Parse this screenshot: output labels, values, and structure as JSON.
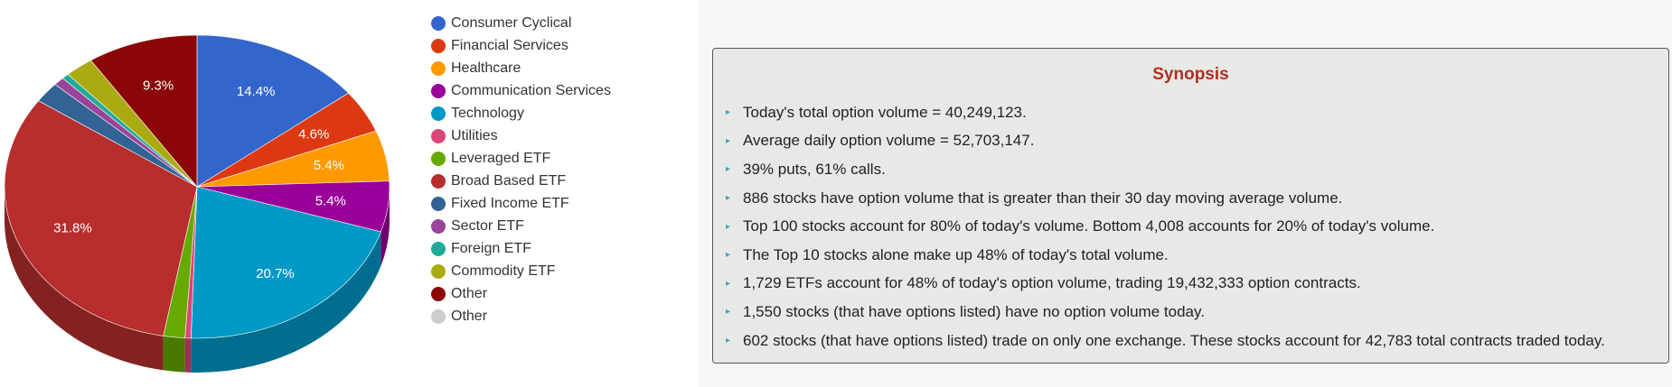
{
  "chart_data": {
    "type": "pie",
    "legend_position": "right",
    "slices": [
      {
        "name": "Consumer Cyclical",
        "value": 14.4,
        "label": "14.4%",
        "color": "#3366cc"
      },
      {
        "name": "Financial Services",
        "value": 4.6,
        "label": "4.6%",
        "color": "#dc3912"
      },
      {
        "name": "Healthcare",
        "value": 5.4,
        "label": "5.4%",
        "color": "#ff9900"
      },
      {
        "name": "Communication Services",
        "value": 5.4,
        "label": "5.4%",
        "color": "#990099"
      },
      {
        "name": "Technology",
        "value": 20.7,
        "label": "20.7%",
        "color": "#0099c6"
      },
      {
        "name": "Utilities",
        "value": 0.5,
        "label": "",
        "color": "#dd4477"
      },
      {
        "name": "Leveraged ETF",
        "value": 1.8,
        "label": "",
        "color": "#66aa00"
      },
      {
        "name": "Broad Based ETF",
        "value": 31.8,
        "label": "31.8%",
        "color": "#b82e2e"
      },
      {
        "name": "Fixed Income ETF",
        "value": 2.2,
        "label": "",
        "color": "#316395"
      },
      {
        "name": "Sector ETF",
        "value": 0.9,
        "label": "",
        "color": "#994499"
      },
      {
        "name": "Foreign ETF",
        "value": 0.6,
        "label": "",
        "color": "#22aa99"
      },
      {
        "name": "Commodity ETF",
        "value": 2.4,
        "label": "",
        "color": "#aaaa11"
      },
      {
        "name": "Other",
        "value": 9.3,
        "label": "9.3%",
        "color": "#8b0707"
      },
      {
        "name": "Other",
        "value": 0.0,
        "label": "",
        "color": "#cccccc"
      }
    ]
  },
  "synopsis": {
    "title": "Synopsis",
    "items": [
      "Today's total option volume = 40,249,123.",
      "Average daily option volume = 52,703,147.",
      "39% puts, 61% calls.",
      "886 stocks have option volume that is greater than their 30 day moving average volume.",
      "Top 100 stocks account for 80% of today's volume. Bottom 4,008 accounts for 20% of today's volume.",
      "The Top 10 stocks alone make up 48% of today's total volume.",
      "1,729 ETFs account for 48% of today's option volume, trading 19,432,333 option contracts.",
      "1,550 stocks (that have options listed) have no option volume today.",
      "602 stocks (that have options listed) trade on only one exchange. These stocks account for 42,783 total contracts traded today."
    ]
  }
}
